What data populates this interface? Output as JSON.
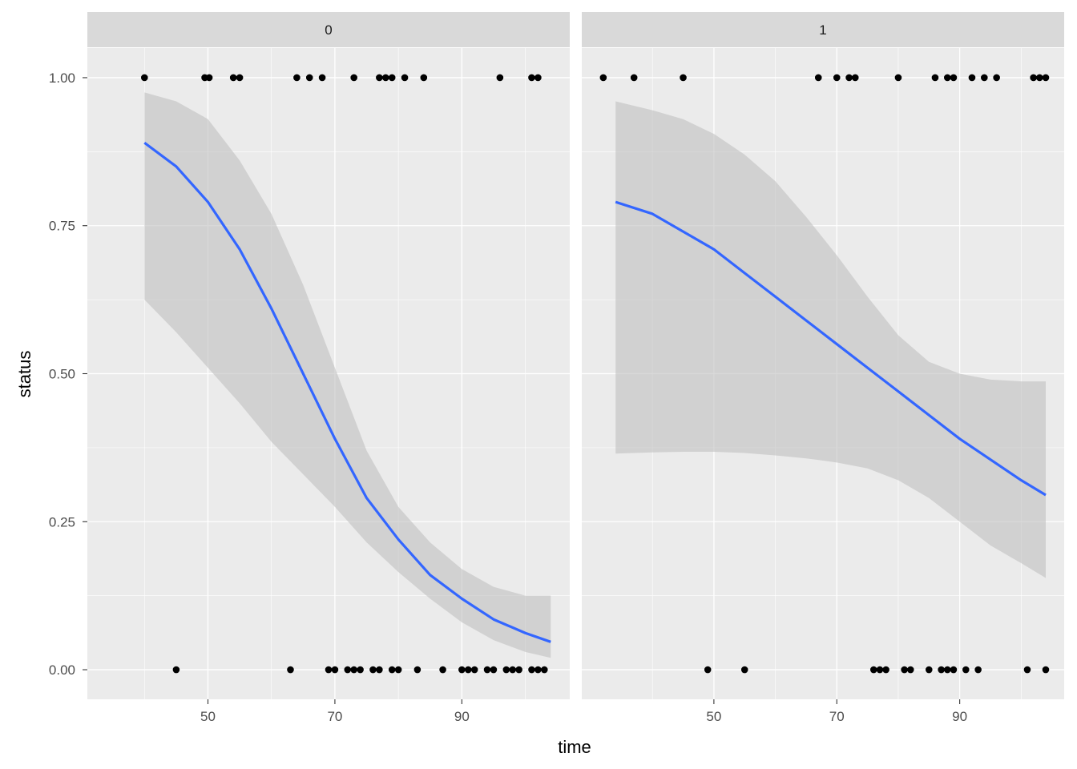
{
  "chart_data": {
    "type": "scatter",
    "xlabel": "time",
    "ylabel": "status",
    "y_ticks": [
      {
        "value": 0.0,
        "label": "0.00"
      },
      {
        "value": 0.25,
        "label": "0.25"
      },
      {
        "value": 0.5,
        "label": "0.50"
      },
      {
        "value": 0.75,
        "label": "0.75"
      },
      {
        "value": 1.0,
        "label": "1.00"
      }
    ],
    "ylim": [
      -0.05,
      1.05
    ],
    "colors": {
      "panel_bg": "#ebebeb",
      "strip_bg": "#d9d9d9",
      "grid": "#ffffff",
      "point": "#000000",
      "line": "#3366ff",
      "ribbon": "#bfbfbf"
    },
    "grid": true,
    "panels": [
      {
        "strip": "0",
        "xlim": [
          31,
          107
        ],
        "x_ticks": [
          {
            "value": 50,
            "label": "50"
          },
          {
            "value": 70,
            "label": "70"
          },
          {
            "value": 90,
            "label": "90"
          }
        ],
        "points_y1": [
          40,
          49.5,
          50.2,
          54,
          55,
          64,
          66,
          68,
          73,
          77,
          78,
          79,
          81,
          84,
          96,
          101,
          102
        ],
        "points_y0": [
          45,
          63,
          69,
          70,
          72,
          73,
          74,
          76,
          77,
          79,
          80,
          83,
          87,
          90,
          91,
          92,
          94,
          95,
          97,
          98,
          99,
          101,
          102,
          103
        ],
        "fit": {
          "x": [
            40,
            45,
            50,
            55,
            60,
            65,
            70,
            75,
            80,
            85,
            90,
            95,
            100,
            104
          ],
          "y": [
            0.89,
            0.85,
            0.79,
            0.71,
            0.61,
            0.5,
            0.39,
            0.29,
            0.22,
            0.16,
            0.12,
            0.085,
            0.062,
            0.047
          ],
          "lower": [
            0.625,
            0.57,
            0.51,
            0.45,
            0.385,
            0.33,
            0.275,
            0.215,
            0.165,
            0.12,
            0.08,
            0.05,
            0.03,
            0.02
          ],
          "upper": [
            0.975,
            0.96,
            0.93,
            0.86,
            0.77,
            0.65,
            0.51,
            0.37,
            0.275,
            0.215,
            0.17,
            0.14,
            0.125,
            0.125
          ]
        }
      },
      {
        "strip": "1",
        "xlim": [
          28.5,
          107
        ],
        "x_ticks": [
          {
            "value": 50,
            "label": "50"
          },
          {
            "value": 70,
            "label": "70"
          },
          {
            "value": 90,
            "label": "90"
          }
        ],
        "points_y1": [
          32,
          37,
          45,
          67,
          70,
          72,
          73,
          80,
          86,
          88,
          89,
          92,
          94,
          96,
          102,
          103,
          104
        ],
        "points_y0": [
          49,
          55,
          76,
          77,
          78,
          81,
          82,
          85,
          87,
          88,
          89,
          91,
          93,
          101,
          104
        ],
        "fit": {
          "x": [
            34,
            40,
            45,
            50,
            55,
            60,
            65,
            70,
            75,
            80,
            85,
            90,
            95,
            100,
            104
          ],
          "y": [
            0.79,
            0.77,
            0.74,
            0.71,
            0.67,
            0.63,
            0.59,
            0.55,
            0.51,
            0.47,
            0.43,
            0.39,
            0.355,
            0.32,
            0.295
          ],
          "lower": [
            0.365,
            0.367,
            0.368,
            0.368,
            0.366,
            0.362,
            0.357,
            0.35,
            0.34,
            0.32,
            0.29,
            0.25,
            0.21,
            0.18,
            0.155
          ],
          "upper": [
            0.96,
            0.945,
            0.93,
            0.905,
            0.87,
            0.825,
            0.765,
            0.7,
            0.63,
            0.565,
            0.52,
            0.5,
            0.49,
            0.487,
            0.487
          ]
        }
      }
    ]
  }
}
